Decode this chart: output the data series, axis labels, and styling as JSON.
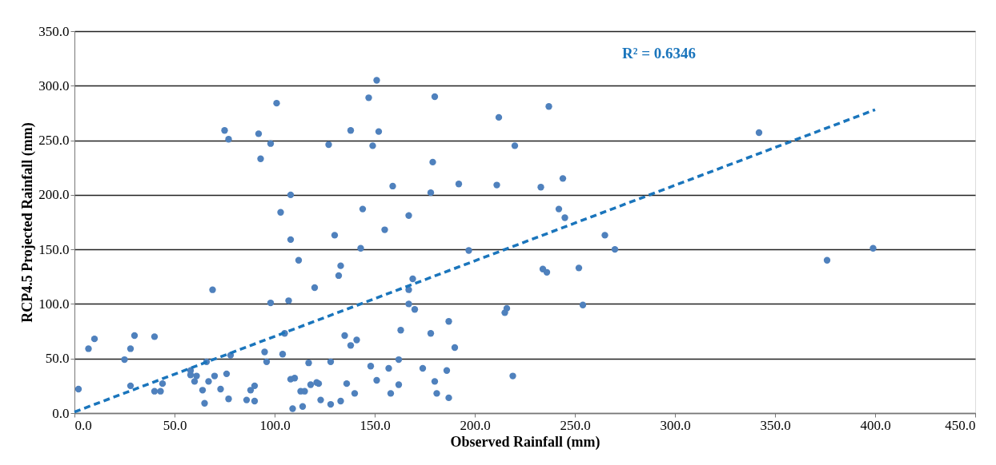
{
  "chart_data": {
    "type": "scatter",
    "xlabel": "Observed Rainfall (mm)",
    "ylabel": "RCP4.5 Projected Rainfall (mm)",
    "annotations": [
      "R² = 0.6346"
    ],
    "xlim": [
      0,
      450
    ],
    "ylim": [
      0,
      350
    ],
    "xticks": [
      {
        "value": 0,
        "label": "0.0"
      },
      {
        "value": 50,
        "label": "50.0"
      },
      {
        "value": 100,
        "label": "100.0"
      },
      {
        "value": 150,
        "label": "150.0"
      },
      {
        "value": 200,
        "label": "200.0"
      },
      {
        "value": 250,
        "label": "250.0"
      },
      {
        "value": 300,
        "label": "300.0"
      },
      {
        "value": 350,
        "label": "350.0"
      },
      {
        "value": 400,
        "label": "400.0"
      },
      {
        "value": 450,
        "label": "450.0"
      }
    ],
    "yticks": [
      {
        "value": 0,
        "label": "0.0"
      },
      {
        "value": 50,
        "label": "50.0"
      },
      {
        "value": 100,
        "label": "100.0"
      },
      {
        "value": 150,
        "label": "150.0"
      },
      {
        "value": 200,
        "label": "200.0"
      },
      {
        "value": 250,
        "label": "250.0"
      },
      {
        "value": 300,
        "label": "300.0"
      },
      {
        "value": 350,
        "label": "350.0"
      }
    ],
    "grid": "y",
    "series": [
      {
        "color": "#4f81bd",
        "marker": "circle",
        "x": [
          2,
          7,
          10,
          25,
          28,
          28,
          30,
          40,
          40,
          43,
          44,
          58,
          58,
          60,
          61,
          64,
          65,
          66,
          67,
          69,
          70,
          73,
          75,
          76,
          77,
          77,
          78,
          86,
          88,
          90,
          90,
          92,
          93,
          95,
          96,
          98,
          98,
          101,
          103,
          104,
          105,
          107,
          108,
          108,
          108,
          109,
          110,
          112,
          113,
          114,
          115,
          117,
          118,
          120,
          121,
          122,
          123,
          127,
          128,
          128,
          130,
          132,
          133,
          133,
          135,
          136,
          138,
          138,
          140,
          141,
          143,
          144,
          147,
          148,
          149,
          151,
          151,
          152,
          155,
          157,
          158,
          159,
          162,
          162,
          163,
          167,
          167,
          167,
          169,
          170,
          174,
          178,
          178,
          179,
          180,
          180,
          181,
          186,
          187,
          187,
          190,
          192,
          197,
          211,
          212,
          215,
          216,
          219,
          220,
          233,
          234,
          236,
          237,
          242,
          244,
          245,
          252,
          254,
          265,
          270,
          342,
          376,
          399
        ],
        "values": [
          22,
          59,
          68,
          49,
          59,
          25,
          71,
          20,
          70,
          20,
          27,
          35,
          39,
          29,
          34,
          21,
          9,
          47,
          29,
          113,
          34,
          22,
          259,
          36,
          251,
          13,
          53,
          12,
          21,
          11,
          25,
          256,
          233,
          56,
          47,
          101,
          247,
          284,
          184,
          54,
          73,
          103,
          200,
          159,
          31,
          4,
          32,
          140,
          20,
          6,
          20,
          46,
          26,
          115,
          28,
          27,
          12,
          246,
          8,
          47,
          163,
          126,
          135,
          11,
          71,
          27,
          259,
          62,
          18,
          67,
          151,
          187,
          289,
          43,
          245,
          305,
          30,
          258,
          168,
          41,
          18,
          208,
          26,
          49,
          76,
          181,
          113,
          100,
          123,
          95,
          41,
          202,
          73,
          230,
          29,
          290,
          18,
          39,
          84,
          14,
          60,
          210,
          149,
          209,
          271,
          92,
          96,
          34,
          245,
          207,
          132,
          129,
          281,
          187,
          215,
          179,
          133,
          99,
          163,
          150,
          257,
          140,
          151
        ]
      },
      {
        "type": "line",
        "color": "#1a75bc",
        "marker": "none",
        "line_style": "dashed",
        "x": [
          0,
          400
        ],
        "values": [
          1,
          278
        ]
      }
    ]
  }
}
